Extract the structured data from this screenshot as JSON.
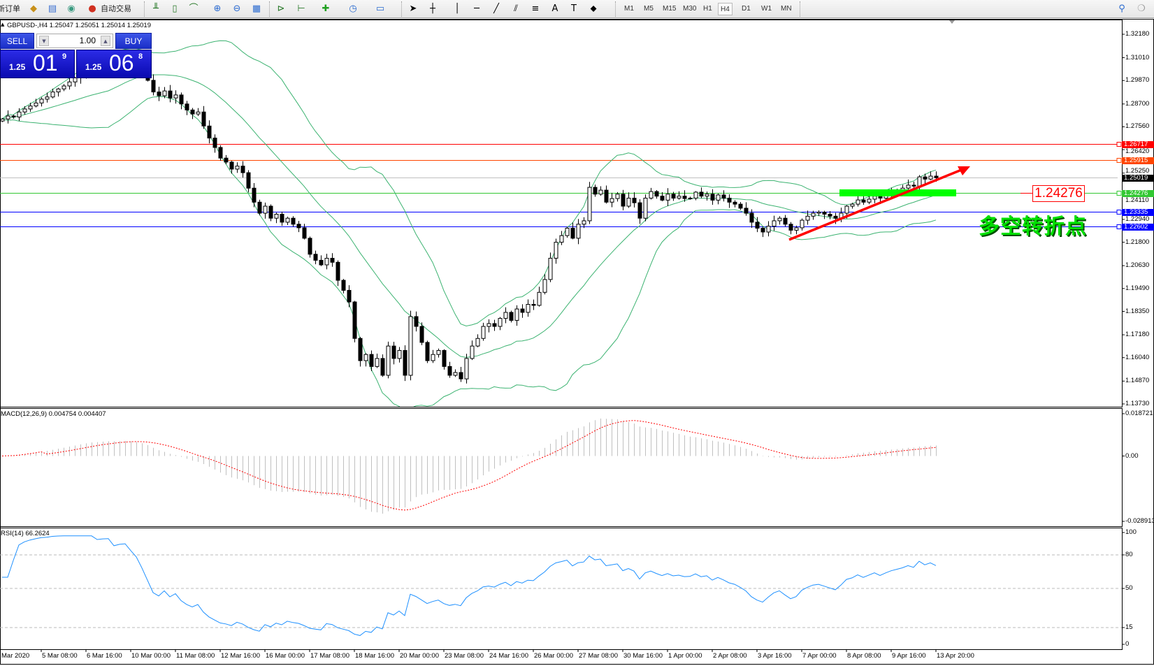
{
  "toolbar": {
    "items": [
      {
        "label": "新订单",
        "icon": "new-order"
      },
      {
        "icon": "history-center-icon"
      },
      {
        "icon": "terminal-icon"
      },
      {
        "icon": "signal-icon"
      },
      {
        "label": "自动交易",
        "icon": "autotrading-icon"
      }
    ],
    "timeframes": [
      "M1",
      "M5",
      "M15",
      "M30",
      "H1",
      "H4",
      "D1",
      "W1",
      "MN"
    ],
    "active_timeframe": "H4"
  },
  "chart": {
    "info": "GBPUSD-,H4  1.25047 1.25051 1.25014 1.25019",
    "symbol": "GBPUSD-",
    "timeframe": "H4"
  },
  "trade_panel": {
    "sell_label": "SELL",
    "buy_label": "BUY",
    "lot": "1.00",
    "sell_price": {
      "prefix": "1.25",
      "big": "01",
      "pip": "9"
    },
    "buy_price": {
      "prefix": "1.25",
      "big": "06",
      "pip": "8"
    }
  },
  "annotations": {
    "level_label": "1.24276",
    "note": "多空转折点"
  },
  "chart_data": [
    {
      "type": "candlestick",
      "title": "GBPUSD-,H4",
      "ylim": [
        1.1373,
        1.3218
      ],
      "yticks": [
        "1.32180",
        "1.31010",
        "1.29870",
        "1.28700",
        "1.27560",
        "1.26420",
        "1.25250",
        "1.24110",
        "1.22940",
        "1.21800",
        "1.20630",
        "1.19490",
        "1.18350",
        "1.17180",
        "1.16040",
        "1.14870",
        "1.13730"
      ],
      "xticks": [
        "Mar 2020",
        "5 Mar 08:00",
        "6 Mar 16:00",
        "10 Mar 00:00",
        "11 Mar 08:00",
        "12 Mar 16:00",
        "16 Mar 00:00",
        "17 Mar 08:00",
        "18 Mar 16:00",
        "20 Mar 00:00",
        "23 Mar 08:00",
        "24 Mar 16:00",
        "26 Mar 00:00",
        "27 Mar 08:00",
        "30 Mar 16:00",
        "1 Apr 00:00",
        "2 Apr 08:00",
        "3 Apr 16:00",
        "7 Apr 00:00",
        "8 Apr 08:00",
        "9 Apr 16:00",
        "13 Apr 20:00"
      ],
      "close": [
        1.2795,
        1.281,
        1.2805,
        1.283,
        1.2845,
        1.286,
        1.2875,
        1.2894,
        1.2905,
        1.293,
        1.2945,
        1.296,
        1.298,
        1.3,
        1.3023,
        1.3035,
        1.305,
        1.304,
        1.306,
        1.307,
        1.3055,
        1.308,
        1.309,
        1.3075,
        1.306,
        1.303,
        1.2988,
        1.293,
        1.2911,
        1.2935,
        1.29,
        1.2915,
        1.287,
        1.284,
        1.282,
        1.283,
        1.276,
        1.27,
        1.2653,
        1.26,
        1.258,
        1.2545,
        1.256,
        1.2527,
        1.245,
        1.238,
        1.2325,
        1.236,
        1.23,
        1.232,
        1.228,
        1.23,
        1.227,
        1.2252,
        1.22,
        1.212,
        1.209,
        1.2067,
        1.21,
        1.208,
        1.199,
        1.194,
        1.1882,
        1.17,
        1.1589,
        1.162,
        1.156,
        1.16,
        1.1516,
        1.1662,
        1.16,
        1.164,
        1.1516,
        1.1809,
        1.176,
        1.168,
        1.1589,
        1.162,
        1.164,
        1.156,
        1.1516,
        1.153,
        1.1498,
        1.16,
        1.1662,
        1.17,
        1.176,
        1.1774,
        1.176,
        1.18,
        1.183,
        1.179,
        1.1847,
        1.183,
        1.187,
        1.1865,
        1.193,
        1.1994,
        1.21,
        1.218,
        1.2213,
        1.225,
        1.22,
        1.227,
        1.2287,
        1.2454,
        1.242,
        1.244,
        1.238,
        1.2398,
        1.242,
        1.236,
        1.24,
        1.2377,
        1.23,
        1.24,
        1.2433,
        1.241,
        1.239,
        1.242,
        1.24,
        1.241,
        1.2398,
        1.24,
        1.243,
        1.241,
        1.242,
        1.239,
        1.2416,
        1.24,
        1.238,
        1.237,
        1.235,
        1.2325,
        1.228,
        1.225,
        1.2231,
        1.226,
        1.2287,
        1.23,
        1.227,
        1.224,
        1.2252,
        1.229,
        1.231,
        1.2325,
        1.233,
        1.232,
        1.231,
        1.23,
        1.2325,
        1.236,
        1.237,
        1.2391,
        1.238,
        1.2395,
        1.241,
        1.24,
        1.2416,
        1.243,
        1.244,
        1.245,
        1.2465,
        1.246,
        1.2506,
        1.2495,
        1.251,
        1.2502
      ],
      "bollinger": {
        "color": "#3cb371"
      },
      "hlines": [
        {
          "price": "1.26717",
          "color": "#ff0000"
        },
        {
          "price": "1.25915",
          "color": "#ff4500"
        },
        {
          "price": "1.25019",
          "color": "#000000",
          "line_color": "#c0c0c0"
        },
        {
          "price": "1.24276",
          "color": "#32c832"
        },
        {
          "price": "1.23335",
          "color": "#0000ff"
        },
        {
          "price": "1.22602",
          "color": "#0000ff"
        }
      ]
    },
    {
      "type": "bar",
      "title": "MACD(12,26,9) 0.004754 0.004407",
      "ylim": [
        -0.028913,
        0.018721
      ],
      "yticks": [
        "0.018721",
        "0.00",
        "-0.028913"
      ],
      "colors": {
        "histogram": "#c0c0c0",
        "signal": "#ff0000"
      }
    },
    {
      "type": "line",
      "title": "RSI(14) 66.2624",
      "ylim": [
        0,
        100
      ],
      "yticks": [
        "100",
        "80",
        "50",
        "15",
        "0"
      ],
      "levels": [
        80,
        50,
        15
      ],
      "color": "#1e90ff"
    }
  ]
}
